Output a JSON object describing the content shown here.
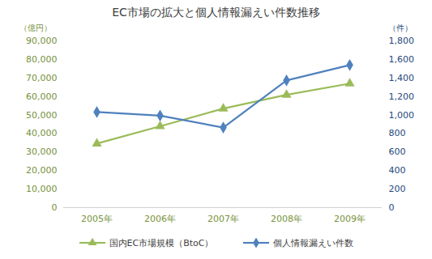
{
  "chart_data": {
    "type": "line",
    "title": "EC市場の拡大と個人情報漏えい件数推移",
    "categories": [
      "2005年",
      "2006年",
      "2007年",
      "2008年",
      "2009年"
    ],
    "y_label": "（億円）",
    "y2_label": "（件）",
    "ylim": [
      0,
      90000
    ],
    "yticks": [
      0,
      {
        "value": 10000,
        "label": "10,000"
      },
      {
        "value": 20000,
        "label": "20,000"
      },
      {
        "value": 30000,
        "label": "30,000"
      },
      {
        "value": 40000,
        "label": "40,000"
      },
      {
        "value": 50000,
        "label": "50,000"
      },
      {
        "value": 60000,
        "label": "60,000"
      },
      {
        "value": 70000,
        "label": "70,000"
      },
      {
        "value": 80000,
        "label": "80,000"
      },
      {
        "value": 90000,
        "label": "90,000"
      }
    ],
    "y2lim": [
      0,
      1800
    ],
    "y2ticks": [
      0,
      200,
      400,
      600,
      800,
      {
        "value": 1000,
        "label": "1,000"
      },
      {
        "value": 1200,
        "label": "1,200"
      },
      {
        "value": 1400,
        "label": "1,400"
      },
      {
        "value": 1600,
        "label": "1,600"
      },
      {
        "value": 1800,
        "label": "1,800"
      }
    ],
    "grid": false,
    "legend": "bottom",
    "series": [
      {
        "name": "国内EC市場規模（BtoC）",
        "color": "#9bbb59",
        "marker": "triangle",
        "values": [
          34560,
          43910,
          53440,
          60890,
          66960
        ]
      },
      {
        "name": "個人情報漏えい件数",
        "color": "#4f81bd",
        "marker": "diamond",
        "axis": "y2",
        "values": [
          1032,
          993,
          864,
          1373,
          1539
        ]
      }
    ]
  }
}
